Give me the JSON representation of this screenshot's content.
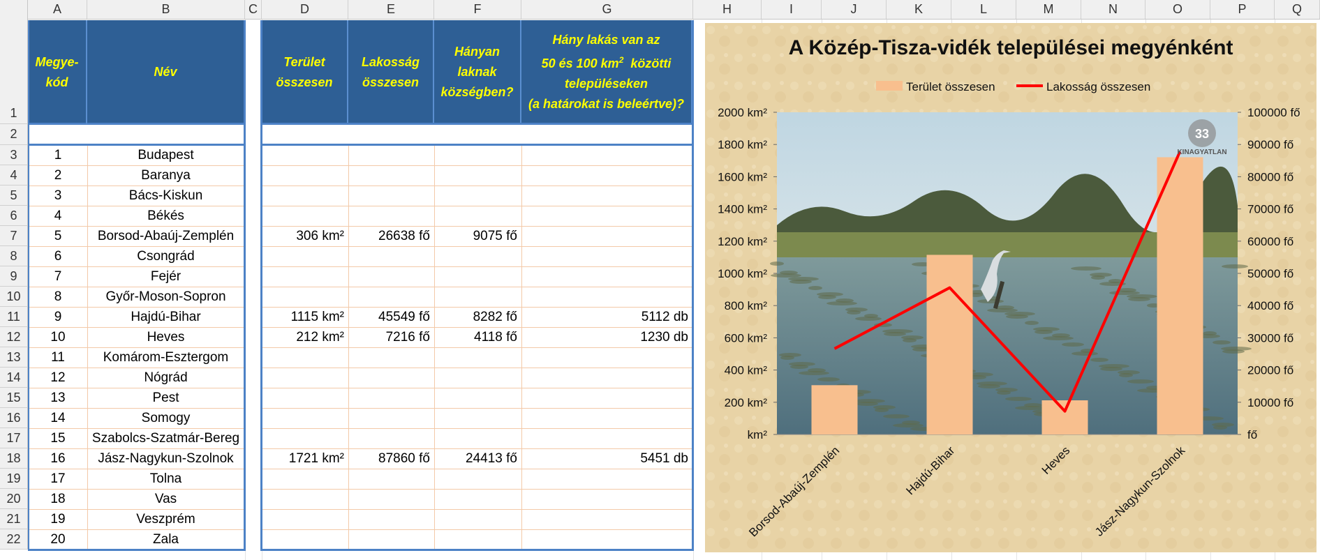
{
  "columns": [
    "A",
    "B",
    "C",
    "D",
    "E",
    "F",
    "G",
    "H",
    "I",
    "J",
    "K",
    "L",
    "M",
    "N",
    "O",
    "P",
    "Q"
  ],
  "rows": [
    "1",
    "2",
    "3",
    "4",
    "5",
    "6",
    "7",
    "8",
    "9",
    "10",
    "11",
    "12",
    "13",
    "14",
    "15",
    "16",
    "17",
    "18",
    "19",
    "20",
    "21",
    "22"
  ],
  "headers": {
    "a": [
      "Megye-",
      "kód"
    ],
    "b": "Név",
    "d": [
      "Terület",
      "összesen"
    ],
    "e": [
      "Lakosság",
      "összesen"
    ],
    "f": [
      "Hányan",
      "laknak",
      "községben?"
    ],
    "g1": "Hány lakás van az",
    "g2": "50 és 100 km",
    "g2sup": "2",
    "g2b": "közötti",
    "g3": "településeken",
    "g4": "(a határokat is beleértve)?"
  },
  "data_rows": [
    {
      "a": "1",
      "b": "Budapest",
      "d": "",
      "e": "",
      "f": "",
      "g": ""
    },
    {
      "a": "2",
      "b": "Baranya",
      "d": "",
      "e": "",
      "f": "",
      "g": ""
    },
    {
      "a": "3",
      "b": "Bács-Kiskun",
      "d": "",
      "e": "",
      "f": "",
      "g": ""
    },
    {
      "a": "4",
      "b": "Békés",
      "d": "",
      "e": "",
      "f": "",
      "g": ""
    },
    {
      "a": "5",
      "b": "Borsod-Abaúj-Zemplén",
      "d": "306 km²",
      "e": "26638 fő",
      "f": "9075 fő",
      "g": ""
    },
    {
      "a": "6",
      "b": "Csongrád",
      "d": "",
      "e": "",
      "f": "",
      "g": ""
    },
    {
      "a": "7",
      "b": "Fejér",
      "d": "",
      "e": "",
      "f": "",
      "g": ""
    },
    {
      "a": "8",
      "b": "Győr-Moson-Sopron",
      "d": "",
      "e": "",
      "f": "",
      "g": ""
    },
    {
      "a": "9",
      "b": "Hajdú-Bihar",
      "d": "1115 km²",
      "e": "45549 fő",
      "f": "8282 fő",
      "g": "5112 db"
    },
    {
      "a": "10",
      "b": "Heves",
      "d": "212 km²",
      "e": "7216 fő",
      "f": "4118 fő",
      "g": "1230 db"
    },
    {
      "a": "11",
      "b": "Komárom-Esztergom",
      "d": "",
      "e": "",
      "f": "",
      "g": ""
    },
    {
      "a": "12",
      "b": "Nógrád",
      "d": "",
      "e": "",
      "f": "",
      "g": ""
    },
    {
      "a": "13",
      "b": "Pest",
      "d": "",
      "e": "",
      "f": "",
      "g": ""
    },
    {
      "a": "14",
      "b": "Somogy",
      "d": "",
      "e": "",
      "f": "",
      "g": ""
    },
    {
      "a": "15",
      "b": "Szabolcs-Szatmár-Bereg",
      "d": "",
      "e": "",
      "f": "",
      "g": ""
    },
    {
      "a": "16",
      "b": "Jász-Nagykun-Szolnok",
      "d": "1721 km²",
      "e": "87860 fő",
      "f": "24413 fő",
      "g": "5451 db"
    },
    {
      "a": "17",
      "b": "Tolna",
      "d": "",
      "e": "",
      "f": "",
      "g": ""
    },
    {
      "a": "18",
      "b": "Vas",
      "d": "",
      "e": "",
      "f": "",
      "g": ""
    },
    {
      "a": "19",
      "b": "Veszprém",
      "d": "",
      "e": "",
      "f": "",
      "g": ""
    },
    {
      "a": "20",
      "b": "Zala",
      "d": "",
      "e": "",
      "f": "",
      "g": ""
    }
  ],
  "chart_data": {
    "type": "bar+line",
    "title": "A Közép-Tisza-vidék települései megyénként",
    "categories": [
      "Borsod-Abaúj-Zemplén",
      "Hajdú-Bihar",
      "Heves",
      "Jász-Nagykun-Szolnok"
    ],
    "series": [
      {
        "name": "Terület összesen",
        "type": "bar",
        "axis": "left",
        "values": [
          306,
          1115,
          212,
          1721
        ],
        "color": "#f8bf8e"
      },
      {
        "name": "Lakosság összesen",
        "type": "line",
        "axis": "right",
        "values": [
          26638,
          45549,
          7216,
          87860
        ],
        "color": "#ff0000"
      }
    ],
    "left_axis": {
      "min": 0,
      "max": 2000,
      "step": 200,
      "unit": "km²",
      "ticks": [
        "km²",
        "200 km²",
        "400 km²",
        "600 km²",
        "800 km²",
        "1000 km²",
        "1200 km²",
        "1400 km²",
        "1600 km²",
        "1800 km²",
        "2000 km²"
      ]
    },
    "right_axis": {
      "min": 0,
      "max": 100000,
      "step": 10000,
      "unit": "fő",
      "ticks": [
        "fő",
        "10000 fő",
        "20000 fő",
        "30000 fő",
        "40000 fő",
        "50000 fő",
        "60000 fő",
        "70000 fő",
        "80000 fő",
        "90000 fő",
        "100000 fő"
      ]
    },
    "legend_position": "top",
    "watermark": "KINAGYATLAN",
    "watermark_badge": "33"
  },
  "colors": {
    "header_bg": "#2e5f95",
    "header_text": "#ffff00",
    "border_blue": "#4d82c6",
    "grid_orange": "#f3c9a8"
  }
}
